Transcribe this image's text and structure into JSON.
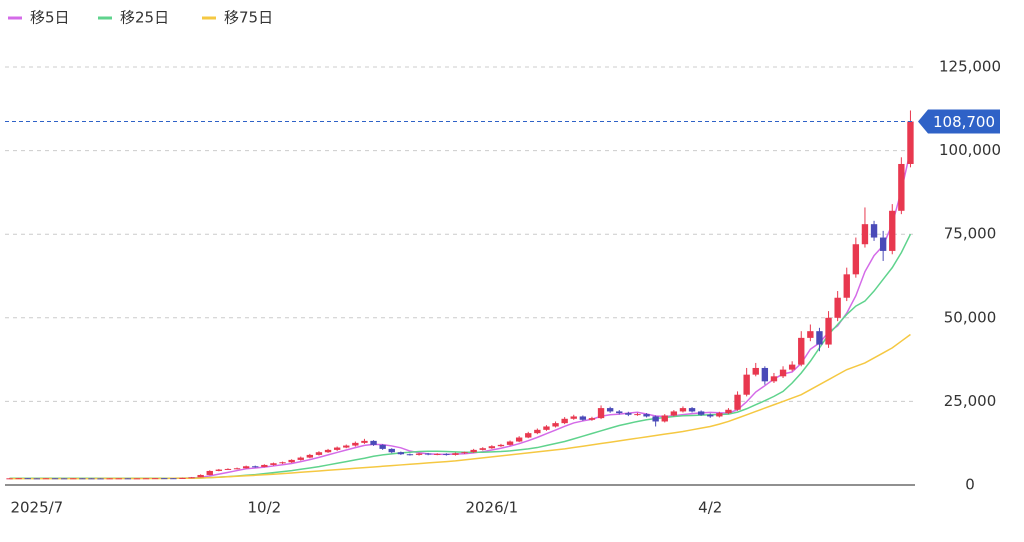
{
  "chart_data": {
    "type": "candlestick",
    "categories": [
      null,
      null,
      null,
      "2025/7",
      null,
      null,
      null,
      null,
      null,
      null,
      null,
      null,
      null,
      null,
      null,
      null,
      null,
      null,
      null,
      null,
      null,
      null,
      null,
      null,
      null,
      null,
      null,
      null,
      "10/2",
      null,
      null,
      null,
      null,
      null,
      null,
      null,
      null,
      null,
      null,
      null,
      null,
      null,
      null,
      null,
      null,
      null,
      null,
      null,
      null,
      null,
      null,
      null,
      null,
      "2026/1",
      null,
      null,
      null,
      null,
      null,
      null,
      null,
      null,
      null,
      null,
      null,
      null,
      null,
      null,
      null,
      null,
      null,
      null,
      null,
      null,
      null,
      null,
      null,
      "4/2",
      null,
      null,
      null,
      null,
      null,
      null,
      null,
      null,
      null,
      null,
      null,
      null,
      null,
      null,
      null,
      null,
      null,
      null,
      null,
      null,
      null,
      null
    ],
    "open": [
      1990,
      2000,
      2050,
      2000,
      1980,
      2020,
      2000,
      1990,
      2010,
      2000,
      1980,
      1970,
      2000,
      2010,
      1990,
      2000,
      2020,
      2050,
      2030,
      2000,
      2100,
      2300,
      3000,
      4200,
      4600,
      4800,
      5000,
      5600,
      5400,
      6000,
      6500,
      6800,
      7500,
      8200,
      9000,
      9800,
      10500,
      11200,
      11800,
      12600,
      13200,
      12000,
      10800,
      9800,
      9200,
      9000,
      9400,
      9100,
      9300,
      9000,
      9500,
      9800,
      10500,
      11000,
      11600,
      12000,
      13000,
      14200,
      15500,
      16500,
      17500,
      18500,
      19800,
      20500,
      19500,
      20000,
      23000,
      22000,
      21500,
      21000,
      21200,
      20500,
      19000,
      20800,
      22000,
      23000,
      22000,
      21000,
      20500,
      21500,
      22500,
      27000,
      33000,
      35000,
      31000,
      32500,
      34500,
      36000,
      44000,
      46000,
      42000,
      50000,
      56000,
      63000,
      72000,
      78000,
      74000,
      70000,
      82000,
      96000
    ],
    "high": [
      2050,
      2100,
      2080,
      2030,
      2050,
      2040,
      2030,
      2040,
      2030,
      2020,
      2010,
      2030,
      2040,
      2030,
      2030,
      2050,
      2080,
      2070,
      2060,
      2150,
      2400,
      3200,
      4400,
      4800,
      5000,
      5200,
      5800,
      5800,
      6200,
      6700,
      7000,
      7700,
      8500,
      9300,
      10100,
      10800,
      11500,
      12100,
      13000,
      13800,
      13400,
      12200,
      11000,
      10000,
      9400,
      9600,
      9600,
      9500,
      9500,
      9700,
      10000,
      10800,
      11300,
      11900,
      12300,
      13300,
      14600,
      15900,
      16900,
      17900,
      19000,
      20300,
      21000,
      20800,
      20400,
      23800,
      23400,
      22400,
      21900,
      21600,
      21500,
      20800,
      21200,
      22400,
      23500,
      23300,
      22300,
      21400,
      21900,
      23000,
      28000,
      35000,
      36500,
      35500,
      33500,
      35500,
      37000,
      46000,
      48000,
      47000,
      52000,
      58000,
      65000,
      74000,
      83000,
      79000,
      76000,
      84000,
      98000,
      112000
    ],
    "low": [
      1960,
      1970,
      1970,
      1950,
      1960,
      1970,
      1960,
      1970,
      1970,
      1950,
      1940,
      1950,
      1980,
      1960,
      1970,
      1980,
      2000,
      2000,
      1980,
      1980,
      2050,
      2250,
      2900,
      4100,
      4500,
      4700,
      4900,
      5200,
      5300,
      5800,
      6300,
      6600,
      7300,
      8000,
      8800,
      9600,
      10200,
      11000,
      11500,
      12300,
      11700,
      10500,
      9500,
      9000,
      8800,
      8800,
      8900,
      8900,
      8800,
      8800,
      9300,
      9600,
      10300,
      10800,
      11400,
      11800,
      12800,
      14000,
      15200,
      16200,
      17200,
      18200,
      19500,
      19200,
      19200,
      19700,
      21600,
      21100,
      20600,
      20700,
      20200,
      17500,
      18700,
      20500,
      21700,
      21700,
      20700,
      20100,
      20200,
      21200,
      22200,
      26500,
      32500,
      30000,
      30500,
      32000,
      34000,
      35500,
      43000,
      40000,
      41000,
      49000,
      55000,
      62000,
      71000,
      73000,
      67000,
      69000,
      81000,
      95000
    ],
    "close": [
      2000,
      2050,
      2000,
      1980,
      2020,
      2000,
      1990,
      2010,
      2000,
      1980,
      1970,
      2000,
      2010,
      1990,
      2000,
      2020,
      2050,
      2030,
      2000,
      2100,
      2300,
      3000,
      4200,
      4600,
      4800,
      5000,
      5600,
      5400,
      6000,
      6500,
      6800,
      7500,
      8200,
      9000,
      9800,
      10500,
      11200,
      11800,
      12600,
      13200,
      12000,
      10800,
      9800,
      9200,
      9000,
      9400,
      9100,
      9300,
      9000,
      9500,
      9800,
      10500,
      11000,
      11600,
      12000,
      13000,
      14200,
      15500,
      16500,
      17500,
      18500,
      19800,
      20500,
      19500,
      20000,
      23000,
      22000,
      21500,
      21000,
      21200,
      20500,
      19000,
      20800,
      22000,
      23000,
      22000,
      21000,
      20500,
      21500,
      22500,
      27000,
      33000,
      35000,
      31000,
      32500,
      34500,
      36000,
      44000,
      46000,
      42000,
      50000,
      56000,
      63000,
      72000,
      78000,
      74000,
      70000,
      82000,
      96000,
      108700
    ],
    "up_color": "#e8384f",
    "down_color": "#4a4ab8",
    "overlays": [
      {
        "name": "移5日",
        "color": "#d46be8",
        "values": [
          2000,
          2010,
          2020,
          2010,
          2010,
          2010,
          2000,
          2000,
          2000,
          2000,
          1990,
          1990,
          1990,
          1990,
          1990,
          2000,
          2010,
          2020,
          2020,
          2040,
          2100,
          2290,
          2720,
          3240,
          3780,
          4320,
          4840,
          5080,
          5360,
          5700,
          6060,
          6440,
          7000,
          7600,
          8260,
          9000,
          9740,
          10460,
          11180,
          11860,
          12160,
          12080,
          11680,
          11120,
          10160,
          9640,
          9300,
          9200,
          9160,
          9260,
          9340,
          9620,
          9960,
          10480,
          10980,
          11620,
          12360,
          13260,
          14240,
          15340,
          16440,
          17560,
          18560,
          19160,
          19660,
          20560,
          21000,
          21200,
          21500,
          21740,
          21240,
          20640,
          20500,
          20700,
          21060,
          21360,
          21560,
          21700,
          21600,
          21500,
          22500,
          24900,
          27800,
          29700,
          31700,
          33200,
          33800,
          36400,
          40600,
          42500,
          45700,
          47600,
          51400,
          56600,
          63800,
          68600,
          71600,
          78000,
          88000,
          100000
        ]
      },
      {
        "name": "移25日",
        "color": "#5fd38d",
        "values": [
          2000,
          2000,
          2000,
          2000,
          2000,
          2000,
          2000,
          2000,
          2000,
          2000,
          2000,
          2000,
          2000,
          2000,
          2000,
          2000,
          2010,
          2020,
          2030,
          2040,
          2050,
          2100,
          2200,
          2350,
          2500,
          2700,
          2900,
          3100,
          3400,
          3700,
          4000,
          4300,
          4700,
          5100,
          5500,
          6000,
          6500,
          7000,
          7500,
          8000,
          8600,
          9000,
          9300,
          9600,
          9800,
          10000,
          10100,
          10100,
          10000,
          9900,
          9800,
          9800,
          9800,
          9900,
          10000,
          10200,
          10500,
          10800,
          11200,
          11800,
          12400,
          13000,
          13800,
          14600,
          15400,
          16200,
          17000,
          17800,
          18400,
          19000,
          19500,
          19900,
          20200,
          20500,
          20700,
          20800,
          20900,
          21000,
          21100,
          21200,
          21800,
          22800,
          24000,
          25200,
          26500,
          28000,
          30500,
          33500,
          37000,
          41000,
          45000,
          48000,
          51000,
          53500,
          55000,
          58000,
          61500,
          65000,
          69500,
          75000
        ]
      },
      {
        "name": "移75日",
        "color": "#f5c842",
        "values": [
          1900,
          1900,
          1900,
          1900,
          1900,
          1900,
          1900,
          1900,
          1900,
          1900,
          1950,
          1950,
          1950,
          1950,
          1950,
          1950,
          1950,
          1950,
          2000,
          2000,
          2000,
          2100,
          2200,
          2300,
          2450,
          2600,
          2750,
          2900,
          3050,
          3200,
          3400,
          3600,
          3800,
          4000,
          4200,
          4400,
          4600,
          4800,
          5000,
          5200,
          5400,
          5600,
          5800,
          6000,
          6200,
          6400,
          6600,
          6800,
          7000,
          7200,
          7500,
          7800,
          8100,
          8400,
          8700,
          9000,
          9300,
          9600,
          9900,
          10200,
          10500,
          10800,
          11200,
          11600,
          12000,
          12400,
          12800,
          13200,
          13600,
          14000,
          14400,
          14800,
          15200,
          15600,
          16000,
          16500,
          17000,
          17500,
          18200,
          19000,
          20000,
          21000,
          22000,
          23000,
          24000,
          25000,
          26000,
          27000,
          28500,
          30000,
          31500,
          33000,
          34500,
          35500,
          36500,
          38000,
          39500,
          41000,
          43000,
          45000
        ]
      }
    ],
    "ylim": [
      0,
      125000
    ],
    "yticks": [
      0,
      {
        "value": 25000,
        "label": "25,000"
      },
      {
        "value": 50000,
        "label": "50,000"
      },
      {
        "value": 75000,
        "label": "75,000"
      },
      {
        "value": 100000,
        "label": "100,000"
      },
      {
        "value": 125000,
        "label": "125,000"
      }
    ],
    "grid": true,
    "price_marker": {
      "value": 108700,
      "label": "108,700",
      "color": "#2f62c7"
    }
  }
}
